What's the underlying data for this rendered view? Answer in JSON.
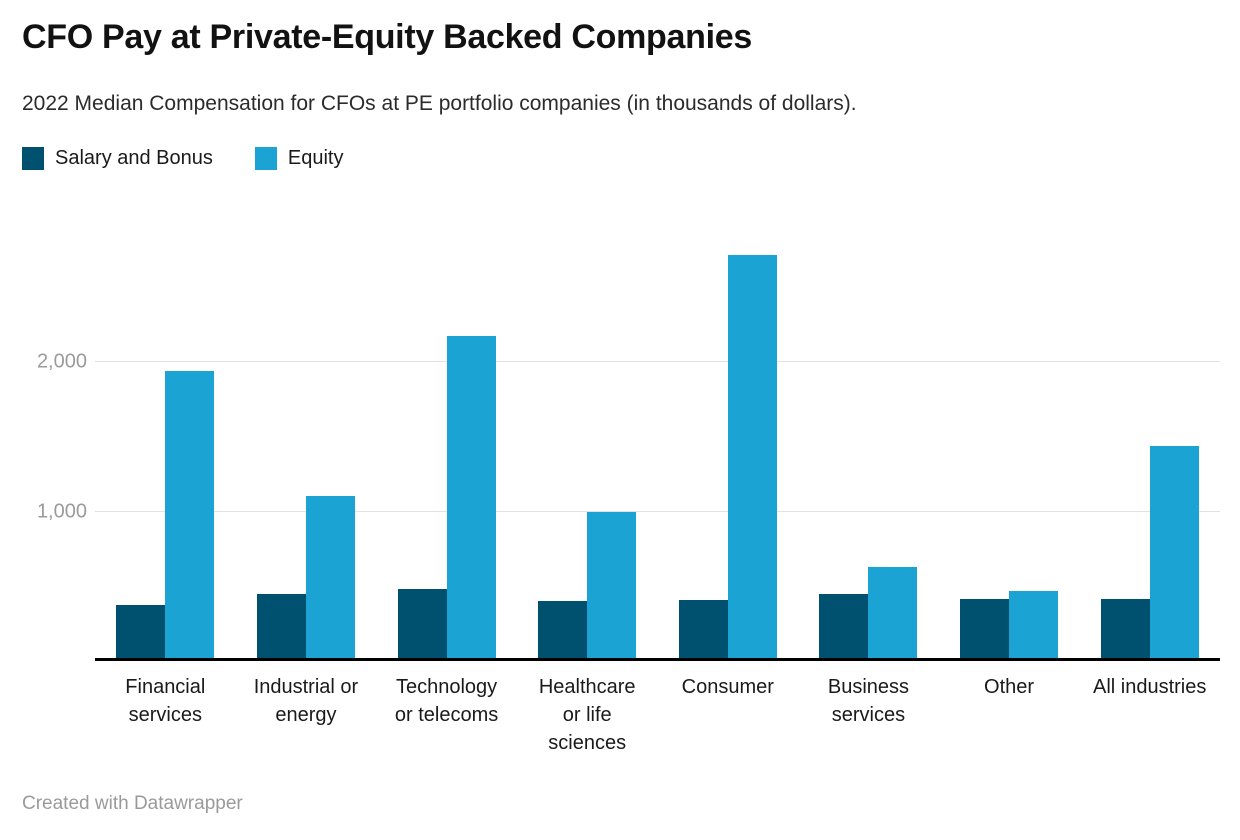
{
  "header": {
    "title": "CFO Pay at Private-Equity Backed Companies",
    "subtitle": "2022 Median Compensation for CFOs at PE portfolio companies (in thousands of dollars)."
  },
  "chart_data": {
    "type": "bar",
    "title": "CFO Pay at Private-Equity Backed Companies",
    "subtitle": "2022 Median Compensation for CFOs at PE portfolio companies (in thousands of dollars).",
    "units": "thousands of dollars",
    "categories": [
      "Financial services",
      "Industrial or energy",
      "Technology or telecoms",
      "Healthcare or life sciences",
      "Consumer",
      "Business services",
      "Other",
      "All industries"
    ],
    "series": [
      {
        "name": "Salary and Bonus",
        "color": "#00516F",
        "values": [
          375,
          450,
          480,
          405,
          410,
          450,
          415,
          415
        ]
      },
      {
        "name": "Equity",
        "color": "#1BA3D3",
        "values": [
          1945,
          1105,
          2180,
          1000,
          2720,
          630,
          470,
          1440
        ]
      }
    ],
    "xlabel": "",
    "ylabel": "",
    "ylim": [
      0,
      2900
    ],
    "yticks": [
      1000,
      2000
    ],
    "ytick_labels": [
      "1,000",
      "2,000"
    ],
    "grid": "horizontal",
    "legend_position": "top-left"
  },
  "footer": {
    "text": "Created with Datawrapper"
  },
  "colors": {
    "axis_line": "#000000",
    "gridline": "#e2e2e2",
    "tick_label": "#9b9b9b",
    "footer_text": "#9a9a9a"
  }
}
